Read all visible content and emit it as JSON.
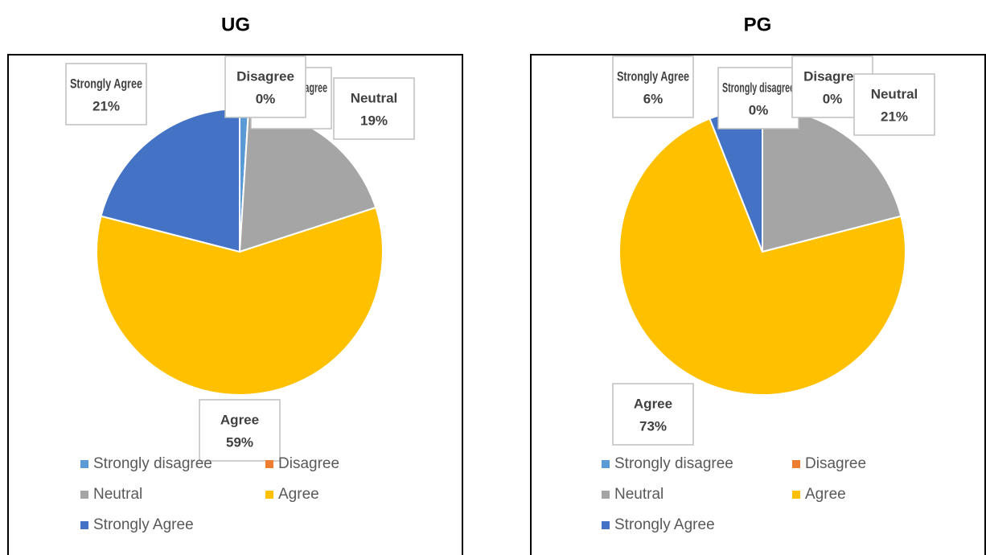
{
  "chart_data": [
    {
      "type": "pie",
      "title": "UG",
      "categories": [
        "Strongly disagree",
        "Disagree",
        "Neutral",
        "Agree",
        "Strongly Agree"
      ],
      "values": [
        1,
        0,
        19,
        59,
        21
      ],
      "value_labels": [
        "1%",
        "0%",
        "19%",
        "59%",
        "21%"
      ],
      "colors": [
        "#5b9bd5",
        "#ed7d31",
        "#a5a5a5",
        "#ffc000",
        "#4472c4"
      ],
      "legend": "bottom"
    },
    {
      "type": "pie",
      "title": "PG",
      "categories": [
        "Strongly disagree",
        "Disagree",
        "Neutral",
        "Agree",
        "Strongly Agree"
      ],
      "values": [
        0,
        0,
        21,
        73,
        6
      ],
      "value_labels": [
        "0%",
        "0%",
        "21%",
        "73%",
        "6%"
      ],
      "colors": [
        "#5b9bd5",
        "#ed7d31",
        "#a5a5a5",
        "#ffc000",
        "#4472c4"
      ],
      "legend": "bottom"
    }
  ]
}
